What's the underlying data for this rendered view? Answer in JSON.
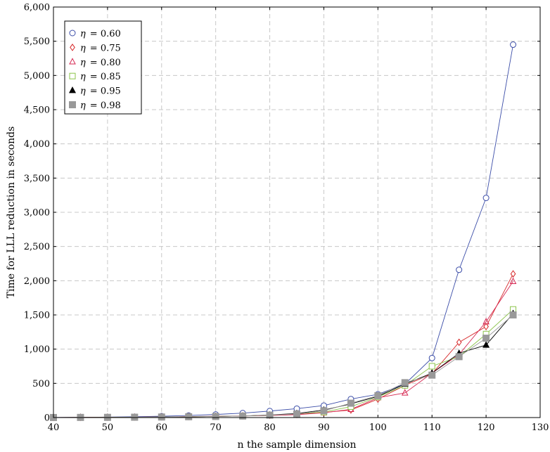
{
  "chart_data": {
    "type": "line",
    "xlabel": "n the sample dimension",
    "ylabel": "Time for LLL reduction in seconds",
    "xlim": [
      40,
      130
    ],
    "ylim": [
      0,
      6000
    ],
    "xticks": [
      40,
      50,
      60,
      70,
      80,
      90,
      100,
      110,
      120,
      130
    ],
    "yticks": [
      0,
      500,
      1000,
      1500,
      2000,
      2500,
      3000,
      3500,
      4000,
      4500,
      5000,
      5500,
      6000
    ],
    "xtick_labels": [
      "40",
      "50",
      "60",
      "70",
      "80",
      "90",
      "100",
      "110",
      "120",
      "130"
    ],
    "ytick_labels": [
      "0",
      "500",
      "1,000",
      "1,500",
      "2,000",
      "2,500",
      "3,000",
      "3,500",
      "4,000",
      "4,500",
      "5,000",
      "5,500",
      "6,000"
    ],
    "grid": true,
    "legend_position": "top-left",
    "x": [
      40,
      45,
      50,
      55,
      60,
      65,
      70,
      75,
      80,
      85,
      90,
      95,
      100,
      105,
      110,
      115,
      120,
      125
    ],
    "series": [
      {
        "name": "η = 0.60",
        "legend_symbol": "η",
        "legend_value": "= 0.60",
        "marker": "circle",
        "color": "#3b4da8",
        "values": [
          2,
          4,
          7,
          12,
          20,
          30,
          45,
          65,
          95,
          130,
          175,
          270,
          340,
          490,
          870,
          2160,
          3210,
          5450
        ]
      },
      {
        "name": "η = 0.75",
        "legend_symbol": "η",
        "legend_value": "= 0.75",
        "marker": "diamond",
        "color": "#d62728",
        "values": [
          1,
          2,
          4,
          6,
          10,
          14,
          18,
          24,
          32,
          45,
          75,
          110,
          270,
          470,
          640,
          1100,
          1330,
          2100
        ]
      },
      {
        "name": "η = 0.80",
        "legend_symbol": "η",
        "legend_value": "= 0.80",
        "marker": "triangle",
        "color": "#d62751",
        "values": [
          1,
          2,
          3,
          5,
          8,
          12,
          16,
          22,
          30,
          42,
          70,
          120,
          290,
          360,
          650,
          920,
          1400,
          1990
        ]
      },
      {
        "name": "η = 0.85",
        "legend_symbol": "η",
        "legend_value": "= 0.85",
        "marker": "square-open",
        "color": "#8bc34a",
        "values": [
          1,
          2,
          3,
          5,
          8,
          12,
          16,
          22,
          35,
          55,
          80,
          160,
          300,
          470,
          750,
          890,
          1220,
          1580
        ]
      },
      {
        "name": "η = 0.95",
        "legend_symbol": "η",
        "legend_value": "= 0.95",
        "marker": "triangle-filled",
        "color": "#000000",
        "values": [
          1,
          2,
          3,
          5,
          8,
          12,
          16,
          22,
          38,
          60,
          110,
          200,
          310,
          490,
          650,
          940,
          1060,
          1520
        ]
      },
      {
        "name": "η = 0.98",
        "legend_symbol": "η",
        "legend_value": "= 0.98",
        "marker": "square-filled",
        "color": "#999999",
        "values": [
          1,
          2,
          3,
          5,
          8,
          12,
          16,
          22,
          36,
          52,
          100,
          210,
          320,
          510,
          620,
          890,
          1160,
          1500
        ]
      }
    ]
  }
}
